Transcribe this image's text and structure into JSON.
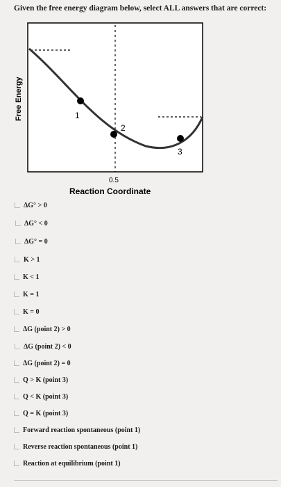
{
  "question": {
    "prompt": "Given the free energy diagram below, select ALL answers that are correct:"
  },
  "diagram": {
    "y_axis_label": "Free Energy",
    "x_axis_label": "Reaction Coordinate",
    "x_tick_label": "0.5",
    "points": [
      {
        "label": "1"
      },
      {
        "label": "2"
      },
      {
        "label": "3"
      }
    ]
  },
  "options": [
    {
      "label": "ΔG° > 0"
    },
    {
      "label": "ΔG° < 0"
    },
    {
      "label": "ΔG° = 0"
    },
    {
      "label": "K > 1"
    },
    {
      "label": "K < 1"
    },
    {
      "label": "K = 1"
    },
    {
      "label": "K = 0"
    },
    {
      "label": "ΔG (point 2) > 0"
    },
    {
      "label": "ΔG (point 2) < 0"
    },
    {
      "label": "ΔG (point 2) = 0"
    },
    {
      "label": "Q > K (point 3)"
    },
    {
      "label": "Q < K (point 3)"
    },
    {
      "label": "Q = K (point 3)"
    },
    {
      "label": "Forward reaction spontaneous (point 1)"
    },
    {
      "label": "Reverse reaction spontaneous (point 1)"
    },
    {
      "label": "Reaction at equilibrium (point 1)"
    }
  ]
}
